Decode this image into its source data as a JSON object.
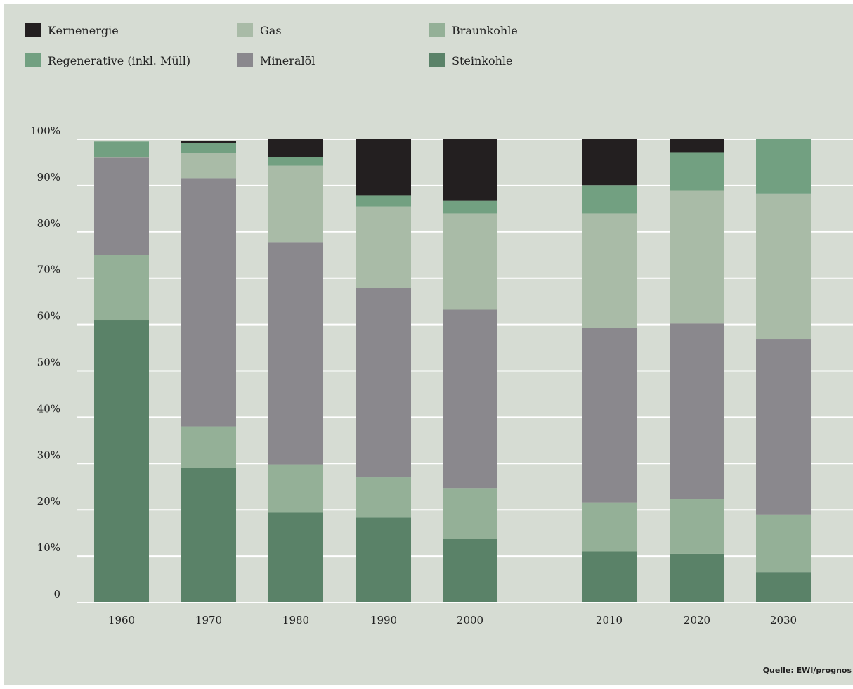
{
  "legend": {
    "items": [
      {
        "name": "Kernenergie",
        "color": "#231f20"
      },
      {
        "name": "Gas",
        "color": "#a9bba7"
      },
      {
        "name": "Braunkohle",
        "color": "#94b097"
      },
      {
        "name": "Regenerative (inkl. Müll)",
        "color": "#72a081"
      },
      {
        "name": "Mineralöl",
        "color": "#8a888d"
      },
      {
        "name": "Steinkohle",
        "color": "#5a8268"
      }
    ]
  },
  "source": "Quelle: EWI/prognos",
  "chart_data": {
    "type": "bar",
    "stacked": true,
    "categories": [
      "1960",
      "1970",
      "1980",
      "1990",
      "2000",
      "2010",
      "2020",
      "2030"
    ],
    "ylim": [
      0,
      100
    ],
    "yticks": [
      0,
      10,
      20,
      30,
      40,
      50,
      60,
      70,
      80,
      90,
      100
    ],
    "ytick_labels": [
      "0",
      "10%",
      "20%",
      "30%",
      "40%",
      "50%",
      "60%",
      "70%",
      "80%",
      "90%",
      "100%"
    ],
    "title": "",
    "xlabel": "",
    "ylabel": "",
    "grid": true,
    "legend_position": "top",
    "series": [
      {
        "name": "Steinkohle",
        "color": "#5a8268",
        "values": [
          61,
          29,
          19.5,
          18.3,
          13.8,
          11,
          10.5,
          6.5
        ]
      },
      {
        "name": "Braunkohle",
        "color": "#94b097",
        "values": [
          14,
          9,
          10.3,
          8.7,
          10.9,
          10.6,
          11.8,
          12.5
        ]
      },
      {
        "name": "Mineralöl",
        "color": "#8a888d",
        "values": [
          21,
          53.6,
          48,
          40.9,
          38.5,
          37.6,
          37.9,
          37.9
        ]
      },
      {
        "name": "Gas",
        "color": "#a9bba7",
        "values": [
          0.2,
          5.4,
          16.5,
          17.6,
          20.8,
          24.8,
          28.8,
          31.3
        ]
      },
      {
        "name": "Regenerative (inkl. Müll)",
        "color": "#72a081",
        "values": [
          3.3,
          2.2,
          1.9,
          2.3,
          2.7,
          6.1,
          8.2,
          11.8
        ]
      },
      {
        "name": "Kernenergie",
        "color": "#231f20",
        "values": [
          0,
          0.5,
          3.8,
          12.2,
          13.3,
          9.9,
          2.8,
          0
        ]
      }
    ]
  }
}
